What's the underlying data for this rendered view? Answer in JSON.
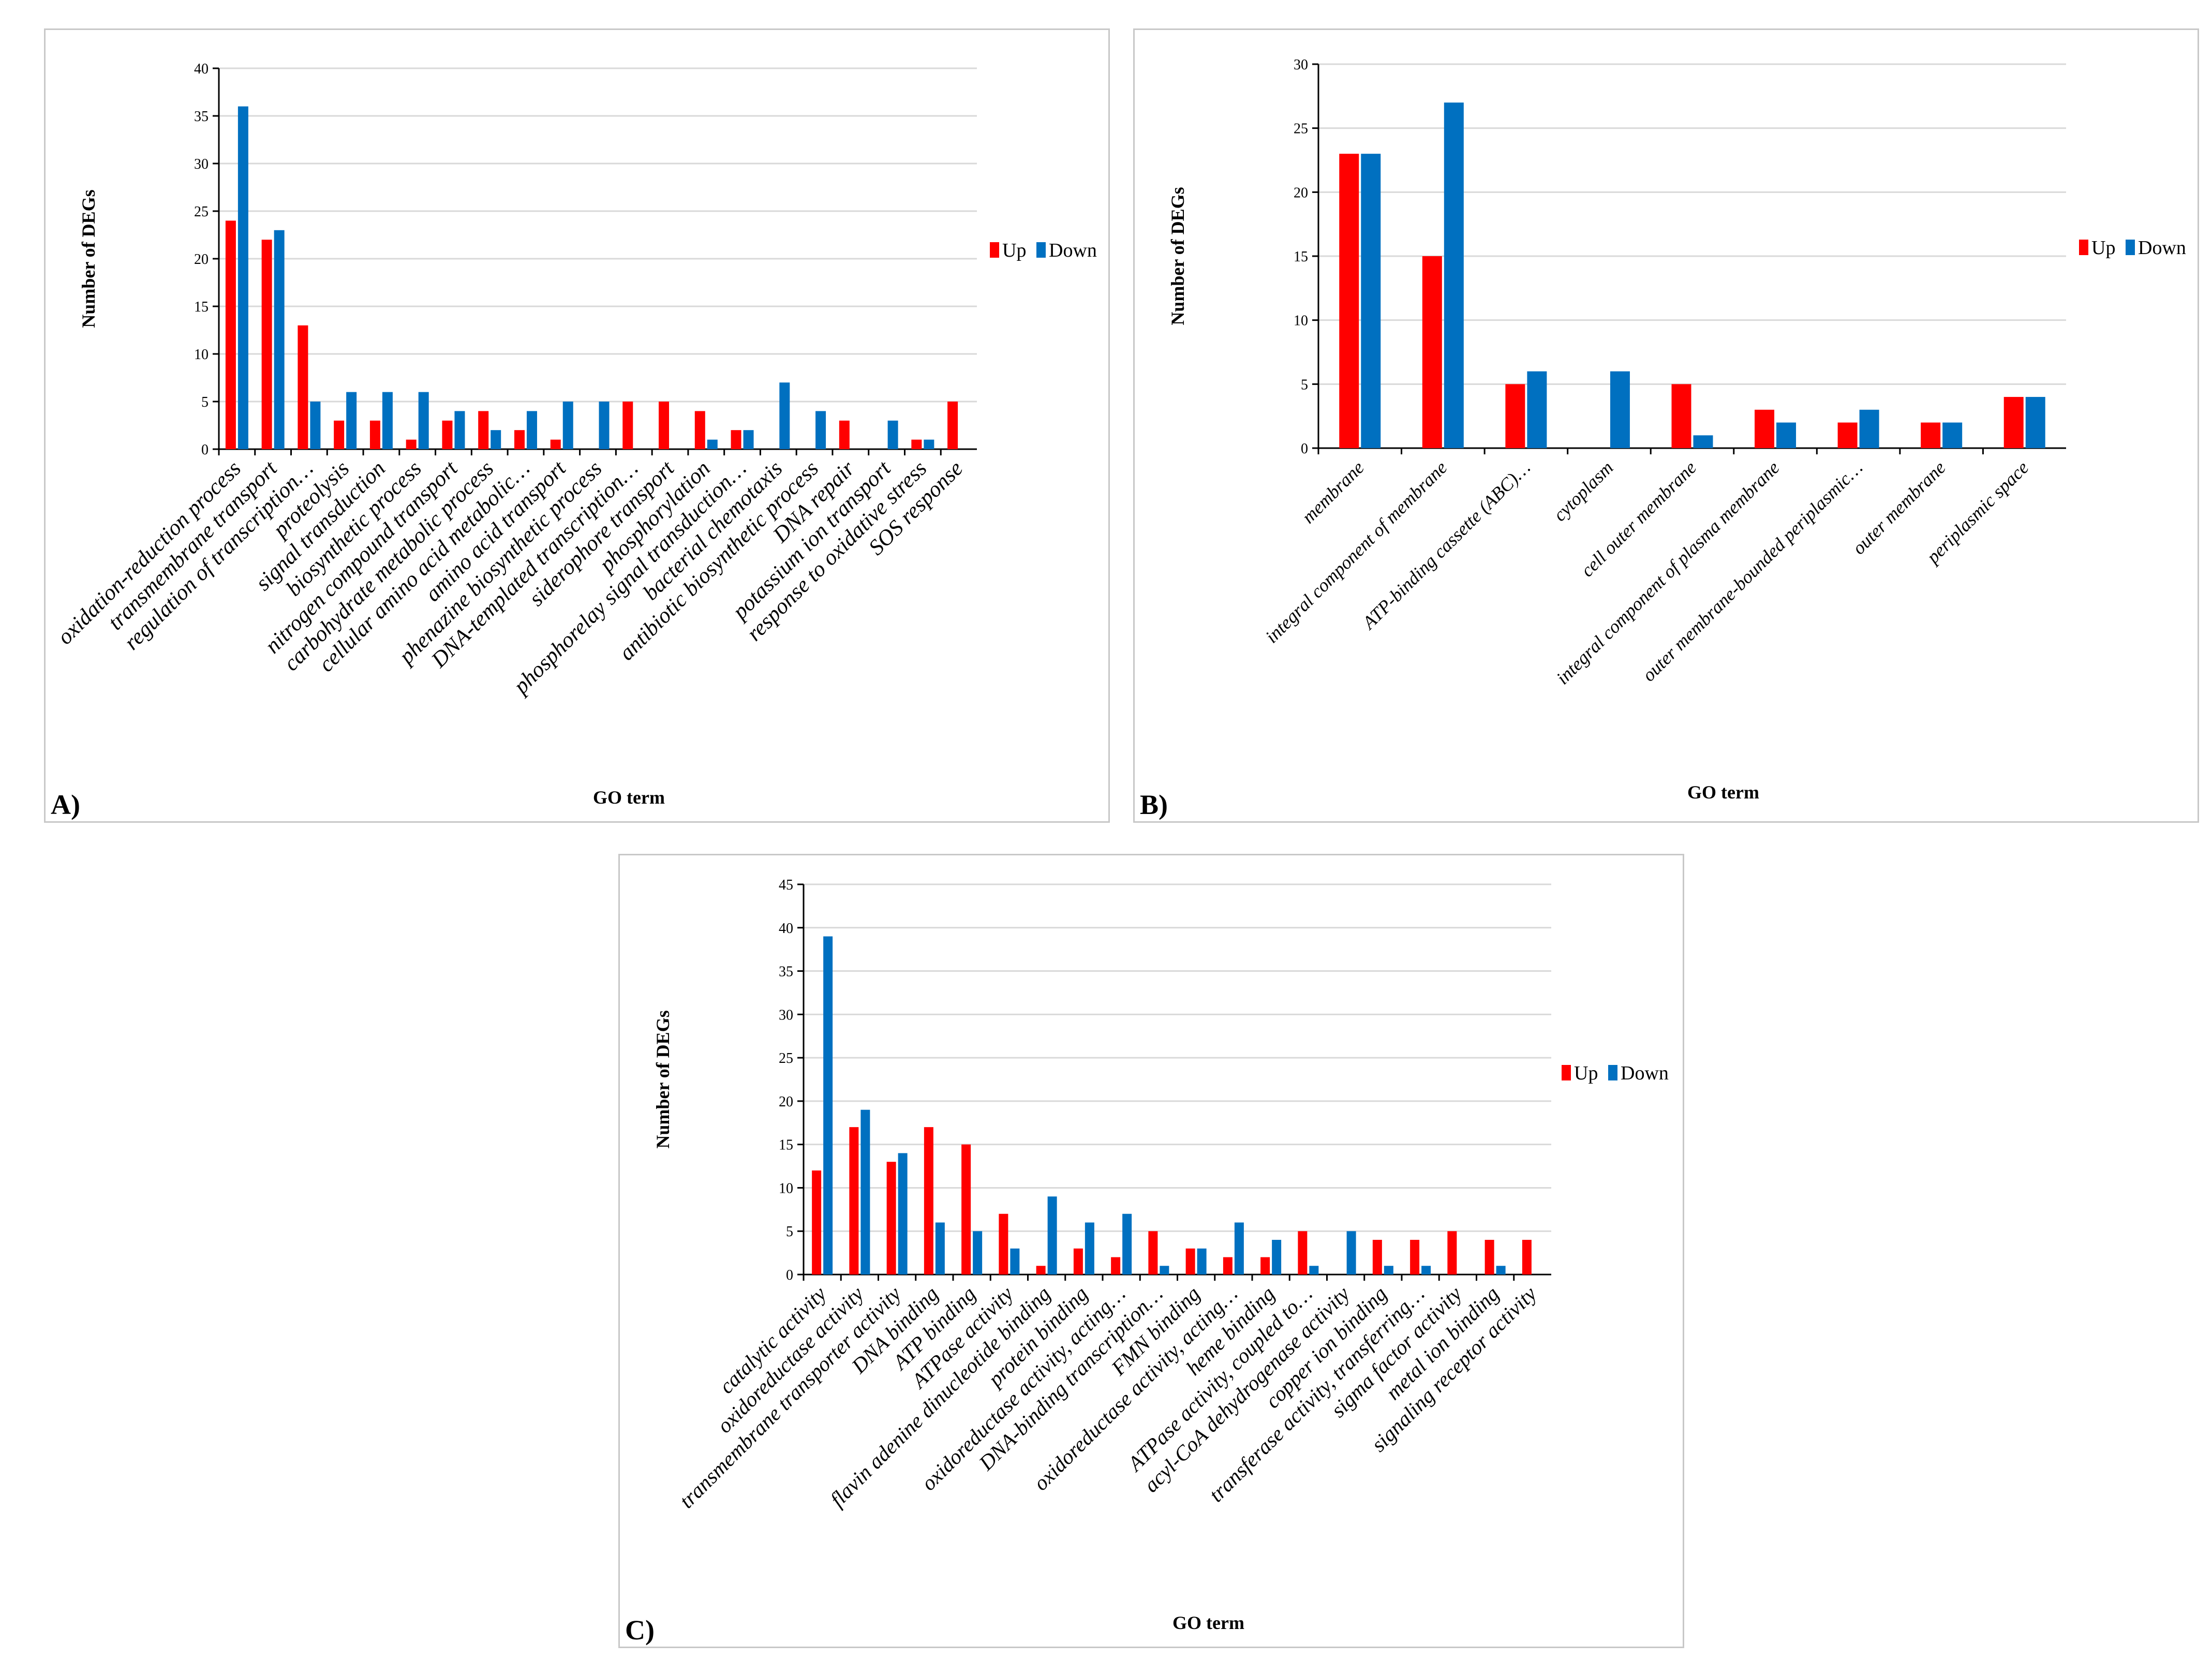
{
  "colors": {
    "up": "#ff0000",
    "down": "#0070c0",
    "grid": "#d9d9d9",
    "axis": "#000000"
  },
  "chart_data": [
    {
      "type": "bar",
      "panel_label": "A)",
      "xlabel": "GO term",
      "ylabel": "Number  of DEGs",
      "ylim": [
        0,
        40
      ],
      "ystep": 5,
      "legend": "right",
      "categories": [
        "oxidation-reduction process",
        "transmembrane transport",
        "regulation of transcription…",
        "proteolysis",
        "signal transduction",
        "biosynthetic process",
        "nitrogen compound transport",
        "carbohydrate metabolic process",
        "cellular amino acid metabolic…",
        "amino acid transport",
        "phenazine biosynthetic process",
        "DNA-templated transcription…",
        "siderophore transport",
        "phosphorylation",
        "phosphorelay signal transduction…",
        "bacterial chemotaxis",
        "antibiotic biosynthetic process",
        "DNA repair",
        "potassium ion transport",
        "response to oxidative stress",
        "SOS response"
      ],
      "series": [
        {
          "name": "Up",
          "values": [
            24,
            22,
            13,
            3,
            3,
            1,
            3,
            4,
            2,
            1,
            0,
            5,
            5,
            4,
            2,
            0,
            0,
            3,
            0,
            1,
            5
          ]
        },
        {
          "name": "Down",
          "values": [
            36,
            23,
            5,
            6,
            6,
            6,
            4,
            2,
            4,
            5,
            5,
            0,
            0,
            1,
            2,
            7,
            4,
            0,
            3,
            1,
            0
          ]
        }
      ]
    },
    {
      "type": "bar",
      "panel_label": "B)",
      "xlabel": "GO term",
      "ylabel": "Number  of DEGs",
      "ylim": [
        0,
        30
      ],
      "ystep": 5,
      "legend": "right",
      "categories": [
        "membrane",
        "integral component of membrane",
        "ATP-binding cassette (ABC)…",
        "cytoplasm",
        "cell outer membrane",
        "integral component of plasma membrane",
        "outer membrane-bounded periplasmic…",
        "outer membrane",
        "periplasmic space"
      ],
      "series": [
        {
          "name": "Up",
          "values": [
            23,
            15,
            5,
            0,
            5,
            3,
            2,
            2,
            4
          ]
        },
        {
          "name": "Down",
          "values": [
            23,
            27,
            6,
            6,
            1,
            2,
            3,
            2,
            4
          ]
        }
      ]
    },
    {
      "type": "bar",
      "panel_label": "C)",
      "xlabel": "GO term",
      "ylabel": "Number  of DEGs",
      "ylim": [
        0,
        45
      ],
      "ystep": 5,
      "legend": "right",
      "categories": [
        "catalytic activity",
        "oxidoreductase activity",
        "transmembrane transporter activity",
        "DNA binding",
        "ATP binding",
        "ATPase activity",
        "flavin adenine dinucleotide binding",
        "protein binding",
        "oxidoreductase activity, acting…",
        "DNA-binding transcription…",
        "FMN binding",
        "oxidoreductase activity, acting…",
        "heme binding",
        "ATPase activity, coupled to…",
        "acyl-CoA dehydrogenase activity",
        "copper ion binding",
        "transferase activity, transferring…",
        "sigma factor activity",
        "metal ion binding",
        "signaling receptor activity"
      ],
      "series": [
        {
          "name": "Up",
          "values": [
            12,
            17,
            13,
            17,
            15,
            7,
            1,
            3,
            2,
            5,
            3,
            2,
            2,
            5,
            0,
            4,
            4,
            5,
            4,
            4
          ]
        },
        {
          "name": "Down",
          "values": [
            39,
            19,
            14,
            6,
            5,
            3,
            9,
            6,
            7,
            1,
            3,
            6,
            4,
            1,
            5,
            1,
            1,
            0,
            1,
            0
          ]
        }
      ]
    }
  ]
}
